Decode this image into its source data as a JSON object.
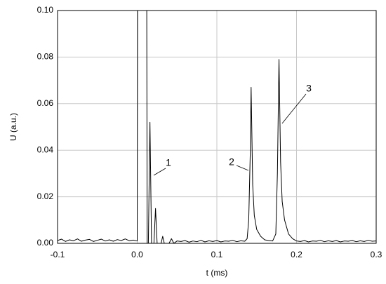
{
  "chart_data": {
    "type": "line",
    "xlabel": "t (ms)",
    "ylabel": "U (a.u.)",
    "xlim": [
      -0.1,
      0.3
    ],
    "ylim": [
      0,
      0.1
    ],
    "xticks": [
      -0.1,
      {
        "value": 0,
        "label": "0.0"
      },
      0.1,
      0.2,
      0.3
    ],
    "yticks": [
      {
        "value": 0,
        "label": "0.00"
      },
      0.02,
      0.04,
      0.06,
      0.08,
      {
        "value": 0.1,
        "label": "0.10"
      }
    ],
    "grid": true,
    "annotations": [
      "1",
      "2",
      "3"
    ],
    "series": [
      {
        "color": "#000000",
        "x": [
          -0.1,
          -0.095,
          -0.09,
          -0.085,
          -0.08,
          -0.075,
          -0.07,
          -0.065,
          -0.06,
          -0.055,
          -0.05,
          -0.045,
          -0.04,
          -0.035,
          -0.03,
          -0.025,
          -0.02,
          -0.015,
          -0.01,
          -0.005,
          0.0,
          0.0005,
          0.012,
          0.0125,
          0.014,
          0.016,
          0.018,
          0.021,
          0.023,
          0.025,
          0.03,
          0.032,
          0.034,
          0.04,
          0.043,
          0.046,
          0.05,
          0.055,
          0.06,
          0.065,
          0.07,
          0.075,
          0.08,
          0.085,
          0.09,
          0.095,
          0.1,
          0.105,
          0.11,
          0.115,
          0.12,
          0.125,
          0.13,
          0.135,
          0.138,
          0.14,
          0.142,
          0.143,
          0.145,
          0.147,
          0.15,
          0.155,
          0.16,
          0.165,
          0.17,
          0.174,
          0.176,
          0.178,
          0.18,
          0.182,
          0.185,
          0.19,
          0.195,
          0.2,
          0.205,
          0.21,
          0.215,
          0.22,
          0.225,
          0.23,
          0.235,
          0.24,
          0.245,
          0.25,
          0.255,
          0.26,
          0.265,
          0.27,
          0.275,
          0.28,
          0.285,
          0.29,
          0.295,
          0.3
        ],
        "values": [
          0.0012,
          0.0018,
          0.0008,
          0.0015,
          0.0011,
          0.0019,
          0.0009,
          0.0014,
          0.0017,
          0.0008,
          0.0013,
          0.0018,
          0.001,
          0.0015,
          0.0009,
          0.0016,
          0.0012,
          0.0019,
          0.0011,
          0.0014,
          0.001,
          0.1,
          0.1,
          0.0,
          0.0,
          0.052,
          0.0,
          0.0,
          0.015,
          0.0,
          0.0,
          0.003,
          0.0,
          0.0,
          0.002,
          0.0,
          0.001,
          0.0008,
          0.0012,
          0.0005,
          0.001,
          0.0007,
          0.0013,
          0.0006,
          0.0011,
          0.0008,
          0.0012,
          0.0006,
          0.001,
          0.0009,
          0.0013,
          0.0007,
          0.0011,
          0.0009,
          0.002,
          0.01,
          0.04,
          0.067,
          0.025,
          0.012,
          0.006,
          0.003,
          0.0015,
          0.0012,
          0.001,
          0.004,
          0.03,
          0.079,
          0.035,
          0.018,
          0.01,
          0.004,
          0.002,
          0.001,
          0.0008,
          0.0012,
          0.0006,
          0.001,
          0.0009,
          0.0013,
          0.0007,
          0.0011,
          0.0008,
          0.0012,
          0.0006,
          0.001,
          0.0009,
          0.0012,
          0.0007,
          0.0011,
          0.0008,
          0.0013,
          0.0009,
          0.001
        ]
      }
    ]
  }
}
